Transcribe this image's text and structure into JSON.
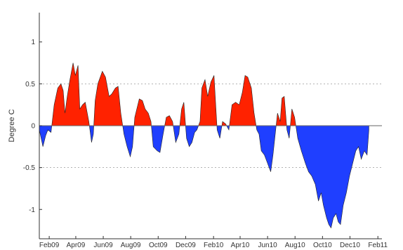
{
  "chart_data": {
    "type": "area",
    "title": "",
    "xlabel": "",
    "ylabel": "Degree C",
    "xlim": [
      "2009-01-10",
      "2011-02-10"
    ],
    "ylim": [
      -1.35,
      1.35
    ],
    "yticks": [
      -1,
      -0.5,
      0,
      0.5,
      1
    ],
    "ytick_labels": [
      "-1",
      "-0.5",
      "0",
      "0.5",
      "1"
    ],
    "xticks": [
      "2009-02-01",
      "2009-04-01",
      "2009-06-01",
      "2009-08-01",
      "2009-10-01",
      "2009-12-01",
      "2010-02-01",
      "2010-04-01",
      "2010-06-01",
      "2010-08-01",
      "2010-10-01",
      "2010-12-01",
      "2011-02-01"
    ],
    "xtick_labels": [
      "Feb09",
      "Apr09",
      "Jun09",
      "Aug09",
      "Oct09",
      "Dec09",
      "Feb10",
      "Apr10",
      "Jun10",
      "Aug10",
      "Oct10",
      "Dec10",
      "Feb11"
    ],
    "grid": "dotted horizontal at ±0.5",
    "positive_color": "#ff2200",
    "negative_color": "#1f3fff",
    "x": [
      "2009-01-10",
      "2009-01-18",
      "2009-01-24",
      "2009-01-29",
      "2009-02-05",
      "2009-02-12",
      "2009-02-20",
      "2009-02-27",
      "2009-03-04",
      "2009-03-08",
      "2009-03-13",
      "2009-03-19",
      "2009-03-26",
      "2009-03-31",
      "2009-04-06",
      "2009-04-10",
      "2009-04-16",
      "2009-04-22",
      "2009-04-30",
      "2009-05-06",
      "2009-05-10",
      "2009-05-14",
      "2009-05-20",
      "2009-05-30",
      "2009-06-06",
      "2009-06-14",
      "2009-06-20",
      "2009-06-28",
      "2009-07-04",
      "2009-07-10",
      "2009-07-17",
      "2009-07-24",
      "2009-07-31",
      "2009-08-05",
      "2009-08-10",
      "2009-08-20",
      "2009-08-27",
      "2009-09-02",
      "2009-09-09",
      "2009-09-15",
      "2009-09-20",
      "2009-09-29",
      "2009-10-05",
      "2009-10-12",
      "2009-10-19",
      "2009-10-26",
      "2009-11-02",
      "2009-11-09",
      "2009-11-16",
      "2009-11-22",
      "2009-11-27",
      "2009-12-03",
      "2009-12-09",
      "2009-12-15",
      "2009-12-21",
      "2009-12-26",
      "2010-01-02",
      "2010-01-06",
      "2010-01-13",
      "2010-01-19",
      "2010-01-26",
      "2010-02-02",
      "2010-02-09",
      "2010-02-15",
      "2010-02-21",
      "2010-02-28",
      "2010-03-07",
      "2010-03-14",
      "2010-03-22",
      "2010-03-30",
      "2010-04-06",
      "2010-04-12",
      "2010-04-18",
      "2010-04-26",
      "2010-05-02",
      "2010-05-08",
      "2010-05-13",
      "2010-05-18",
      "2010-05-25",
      "2010-06-01",
      "2010-06-08",
      "2010-06-13",
      "2010-06-18",
      "2010-06-23",
      "2010-06-29",
      "2010-07-03",
      "2010-07-08",
      "2010-07-14",
      "2010-07-19",
      "2010-07-25",
      "2010-07-31",
      "2010-08-07",
      "2010-08-15",
      "2010-08-24",
      "2010-08-31",
      "2010-09-07",
      "2010-09-15",
      "2010-09-22",
      "2010-09-28",
      "2010-10-03",
      "2010-10-10",
      "2010-10-15",
      "2010-10-20",
      "2010-10-25",
      "2010-10-31",
      "2010-11-05",
      "2010-11-10",
      "2010-11-16",
      "2010-11-23",
      "2010-11-30",
      "2010-12-07",
      "2010-12-14",
      "2010-12-20",
      "2010-12-26",
      "2011-01-02",
      "2011-01-08",
      "2011-01-12"
    ],
    "values": [
      -0.05,
      -0.25,
      -0.12,
      -0.05,
      -0.08,
      0.25,
      0.45,
      0.5,
      0.42,
      0.15,
      0.35,
      0.55,
      0.75,
      0.6,
      0.72,
      0.2,
      0.25,
      0.28,
      0.05,
      -0.2,
      -0.1,
      0.3,
      0.5,
      0.65,
      0.58,
      0.35,
      0.38,
      0.45,
      0.47,
      0.15,
      -0.1,
      -0.25,
      -0.37,
      -0.25,
      0.1,
      0.32,
      0.3,
      0.2,
      0.15,
      0.05,
      -0.25,
      -0.3,
      -0.32,
      -0.1,
      0.1,
      0.12,
      0.05,
      -0.2,
      -0.1,
      0.2,
      0.28,
      -0.15,
      -0.25,
      -0.2,
      -0.08,
      -0.05,
      0.05,
      0.45,
      0.55,
      0.35,
      0.52,
      0.6,
      -0.05,
      -0.15,
      0.05,
      0.02,
      -0.05,
      0.25,
      0.28,
      0.25,
      0.4,
      0.6,
      0.58,
      0.45,
      0.15,
      -0.05,
      -0.1,
      -0.3,
      -0.35,
      -0.45,
      -0.55,
      -0.35,
      -0.1,
      0.15,
      0.05,
      0.33,
      0.35,
      -0.05,
      -0.15,
      0.2,
      0.1,
      -0.15,
      -0.3,
      -0.45,
      -0.55,
      -0.6,
      -0.7,
      -0.9,
      -0.8,
      -0.95,
      -1.1,
      -1.18,
      -1.22,
      -1.1,
      -1.05,
      -1.15,
      -1.18,
      -0.95,
      -0.8,
      -0.6,
      -0.45,
      -0.3,
      -0.25,
      -0.4,
      -0.3,
      -0.35,
      -0.05
    ]
  }
}
